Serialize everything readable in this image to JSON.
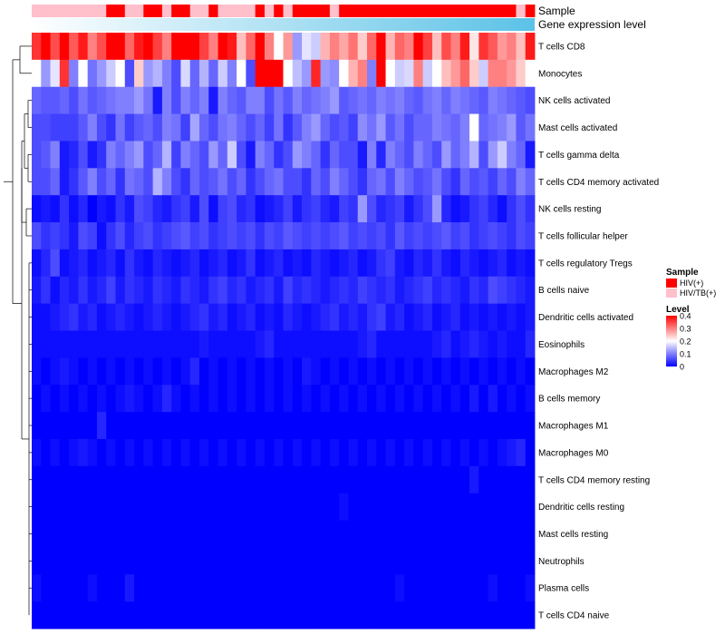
{
  "chart_data": {
    "type": "heatmap",
    "title": "",
    "annotation_titles": {
      "sample": "Sample",
      "gene_expression": "Gene expression level"
    },
    "rows": [
      "T cells CD8",
      "Monocytes",
      "NK cells activated",
      "Mast cells activated",
      "T cells gamma delta",
      "T cells CD4 memory activated",
      "NK cells resting",
      "T cells follicular helper",
      "T cells regulatory  Tregs",
      "B cells naive",
      "Dendritic cells activated",
      "Eosinophils",
      "Macrophages M2",
      "B cells memory",
      "Macrophages M1",
      "Macrophages M0",
      "T cells CD4 memory resting",
      "Dendritic cells resting",
      "Mast cells resting",
      "Neutrophils",
      "Plasma cells",
      "T cells CD4 naive"
    ],
    "sample_groups": [
      "HIV/TB(+)",
      "HIV/TB(+)",
      "HIV/TB(+)",
      "HIV/TB(+)",
      "HIV/TB(+)",
      "HIV/TB(+)",
      "HIV/TB(+)",
      "HIV/TB(+)",
      "HIV(+)",
      "HIV(+)",
      "HIV/TB(+)",
      "HIV/TB(+)",
      "HIV(+)",
      "HIV(+)",
      "HIV/TB(+)",
      "HIV(+)",
      "HIV(+)",
      "HIV/TB(+)",
      "HIV/TB(+)",
      "HIV(+)",
      "HIV/TB(+)",
      "HIV/TB(+)",
      "HIV/TB(+)",
      "HIV/TB(+)",
      "HIV(+)",
      "HIV/TB(+)",
      "HIV(+)",
      "HIV/TB(+)",
      "HIV(+)",
      "HIV(+)",
      "HIV(+)",
      "HIV(+)",
      "HIV/TB(+)",
      "HIV(+)",
      "HIV(+)",
      "HIV(+)",
      "HIV(+)",
      "HIV(+)",
      "HIV(+)",
      "HIV(+)",
      "HIV(+)",
      "HIV(+)",
      "HIV(+)",
      "HIV(+)",
      "HIV(+)",
      "HIV(+)",
      "HIV(+)",
      "HIV(+)",
      "HIV(+)",
      "HIV(+)",
      "HIV(+)",
      "HIV(+)",
      "HIV/TB(+)",
      "HIV(+)"
    ],
    "gene_expression_gradient": {
      "from": "#ffffff",
      "to": "#5bc2e7"
    },
    "values": [
      [
        0.36,
        0.4,
        0.34,
        0.46,
        0.33,
        0.38,
        0.3,
        0.34,
        0.4,
        0.46,
        0.32,
        0.38,
        0.46,
        0.35,
        0.3,
        0.45,
        0.41,
        0.4,
        0.35,
        0.3,
        0.43,
        0.38,
        0.25,
        0.32,
        0.46,
        0.3,
        0.2,
        0.28,
        0.12,
        0.18,
        0.16,
        0.26,
        0.3,
        0.27,
        0.31,
        0.24,
        0.32,
        0.41,
        0.26,
        0.32,
        0.3,
        0.44,
        0.35,
        0.25,
        0.34,
        0.3,
        0.38,
        0.22,
        0.36,
        0.33,
        0.28,
        0.3,
        0.25,
        0.38
      ],
      [
        0.2,
        0.12,
        0.18,
        0.36,
        0.1,
        0.2,
        0.09,
        0.12,
        0.16,
        0.2,
        0.06,
        0.24,
        0.12,
        0.14,
        0.1,
        0.06,
        0.17,
        0.08,
        0.14,
        0.08,
        0.16,
        0.1,
        0.2,
        0.06,
        0.46,
        0.46,
        0.46,
        0.2,
        0.15,
        0.12,
        0.37,
        0.12,
        0.11,
        0.2,
        0.26,
        0.3,
        0.1,
        0.46,
        0.2,
        0.16,
        0.17,
        0.3,
        0.16,
        0.2,
        0.25,
        0.28,
        0.32,
        0.24,
        0.16,
        0.3,
        0.3,
        0.28,
        0.24,
        0.2
      ],
      [
        0.08,
        0.07,
        0.07,
        0.08,
        0.06,
        0.09,
        0.07,
        0.08,
        0.09,
        0.1,
        0.1,
        0.12,
        0.09,
        0.02,
        0.1,
        0.06,
        0.1,
        0.08,
        0.1,
        0.02,
        0.1,
        0.08,
        0.07,
        0.1,
        0.1,
        0.06,
        0.09,
        0.07,
        0.1,
        0.08,
        0.09,
        0.1,
        0.12,
        0.07,
        0.08,
        0.09,
        0.08,
        0.1,
        0.09,
        0.1,
        0.08,
        0.07,
        0.09,
        0.1,
        0.08,
        0.1,
        0.09,
        0.08,
        0.07,
        0.1,
        0.09,
        0.08,
        0.07,
        0.06
      ],
      [
        0.06,
        0.06,
        0.05,
        0.05,
        0.05,
        0.07,
        0.1,
        0.06,
        0.04,
        0.09,
        0.05,
        0.07,
        0.08,
        0.06,
        0.1,
        0.09,
        0.05,
        0.13,
        0.08,
        0.06,
        0.09,
        0.1,
        0.08,
        0.06,
        0.08,
        0.05,
        0.09,
        0.04,
        0.07,
        0.1,
        0.12,
        0.08,
        0.06,
        0.07,
        0.05,
        0.11,
        0.09,
        0.12,
        0.07,
        0.09,
        0.06,
        0.08,
        0.08,
        0.1,
        0.09,
        0.08,
        0.1,
        0.2,
        0.08,
        0.09,
        0.1,
        0.12,
        0.07,
        0.09
      ],
      [
        0.06,
        0.07,
        0.1,
        0.02,
        0.03,
        0.06,
        0.02,
        0.04,
        0.1,
        0.08,
        0.1,
        0.12,
        0.06,
        0.08,
        0.14,
        0.05,
        0.1,
        0.08,
        0.06,
        0.12,
        0.08,
        0.16,
        0.06,
        0.02,
        0.1,
        0.08,
        0.04,
        0.06,
        0.12,
        0.1,
        0.08,
        0.04,
        0.08,
        0.06,
        0.06,
        0.02,
        0.1,
        0.03,
        0.1,
        0.08,
        0.06,
        0.1,
        0.08,
        0.06,
        0.12,
        0.08,
        0.1,
        0.14,
        0.06,
        0.12,
        0.16,
        0.1,
        0.08,
        0.02
      ],
      [
        0.06,
        0.06,
        0.08,
        0.02,
        0.04,
        0.07,
        0.1,
        0.06,
        0.08,
        0.04,
        0.09,
        0.08,
        0.06,
        0.14,
        0.1,
        0.06,
        0.04,
        0.08,
        0.06,
        0.07,
        0.09,
        0.06,
        0.08,
        0.04,
        0.06,
        0.08,
        0.09,
        0.06,
        0.06,
        0.04,
        0.08,
        0.06,
        0.1,
        0.08,
        0.06,
        0.04,
        0.08,
        0.09,
        0.06,
        0.1,
        0.08,
        0.06,
        0.07,
        0.09,
        0.06,
        0.04,
        0.08,
        0.06,
        0.07,
        0.05,
        0.08,
        0.06,
        0.1,
        0.08
      ],
      [
        0.01,
        0.02,
        0.01,
        0.04,
        0.01,
        0.03,
        0.0,
        0.02,
        0.01,
        0.04,
        0.02,
        0.06,
        0.05,
        0.03,
        0.02,
        0.04,
        0.05,
        0.02,
        0.06,
        0.01,
        0.05,
        0.06,
        0.03,
        0.04,
        0.01,
        0.02,
        0.03,
        0.05,
        0.02,
        0.04,
        0.05,
        0.03,
        0.02,
        0.05,
        0.04,
        0.12,
        0.06,
        0.03,
        0.04,
        0.05,
        0.02,
        0.04,
        0.06,
        0.12,
        0.03,
        0.01,
        0.02,
        0.04,
        0.05,
        0.03,
        0.01,
        0.04,
        0.06,
        0.04
      ],
      [
        0.06,
        0.04,
        0.05,
        0.04,
        0.02,
        0.06,
        0.05,
        0.01,
        0.04,
        0.06,
        0.03,
        0.05,
        0.06,
        0.04,
        0.05,
        0.06,
        0.07,
        0.05,
        0.06,
        0.04,
        0.05,
        0.06,
        0.05,
        0.06,
        0.04,
        0.06,
        0.05,
        0.07,
        0.06,
        0.05,
        0.06,
        0.05,
        0.06,
        0.07,
        0.05,
        0.06,
        0.05,
        0.06,
        0.04,
        0.07,
        0.05,
        0.06,
        0.05,
        0.06,
        0.07,
        0.05,
        0.06,
        0.04,
        0.05,
        0.06,
        0.05,
        0.04,
        0.06,
        0.05
      ],
      [
        0.01,
        0.03,
        0.06,
        0.01,
        0.02,
        0.03,
        0.01,
        0.02,
        0.03,
        0.01,
        0.04,
        0.02,
        0.01,
        0.03,
        0.02,
        0.01,
        0.02,
        0.03,
        0.01,
        0.02,
        0.03,
        0.01,
        0.02,
        0.04,
        0.01,
        0.02,
        0.03,
        0.01,
        0.02,
        0.01,
        0.03,
        0.02,
        0.01,
        0.02,
        0.03,
        0.01,
        0.02,
        0.04,
        0.05,
        0.02,
        0.01,
        0.03,
        0.02,
        0.04,
        0.02,
        0.01,
        0.03,
        0.02,
        0.01,
        0.02,
        0.03,
        0.01,
        0.02,
        0.01
      ],
      [
        0.02,
        0.04,
        0.01,
        0.03,
        0.02,
        0.04,
        0.02,
        0.03,
        0.05,
        0.02,
        0.04,
        0.03,
        0.02,
        0.04,
        0.03,
        0.02,
        0.04,
        0.03,
        0.02,
        0.04,
        0.05,
        0.03,
        0.04,
        0.02,
        0.03,
        0.04,
        0.02,
        0.05,
        0.03,
        0.04,
        0.03,
        0.02,
        0.03,
        0.04,
        0.03,
        0.05,
        0.04,
        0.03,
        0.04,
        0.02,
        0.03,
        0.04,
        0.05,
        0.03,
        0.04,
        0.03,
        0.02,
        0.04,
        0.03,
        0.06,
        0.05,
        0.04,
        0.03,
        0.02
      ],
      [
        0.01,
        0.01,
        0.02,
        0.03,
        0.04,
        0.02,
        0.03,
        0.01,
        0.02,
        0.03,
        0.02,
        0.01,
        0.02,
        0.03,
        0.02,
        0.01,
        0.02,
        0.03,
        0.04,
        0.02,
        0.03,
        0.01,
        0.02,
        0.03,
        0.01,
        0.02,
        0.01,
        0.03,
        0.02,
        0.01,
        0.02,
        0.03,
        0.04,
        0.02,
        0.03,
        0.02,
        0.04,
        0.05,
        0.02,
        0.03,
        0.01,
        0.02,
        0.03,
        0.01,
        0.02,
        0.03,
        0.01,
        0.02,
        0.01,
        0.02,
        0.01,
        0.02,
        0.01,
        0.02
      ],
      [
        0.01,
        0.01,
        0.01,
        0.01,
        0.01,
        0.01,
        0.01,
        0.01,
        0.01,
        0.01,
        0.01,
        0.01,
        0.01,
        0.01,
        0.01,
        0.01,
        0.01,
        0.01,
        0.02,
        0.01,
        0.01,
        0.01,
        0.01,
        0.01,
        0.02,
        0.03,
        0.01,
        0.01,
        0.01,
        0.01,
        0.01,
        0.01,
        0.01,
        0.01,
        0.01,
        0.02,
        0.03,
        0.01,
        0.01,
        0.01,
        0.01,
        0.01,
        0.01,
        0.02,
        0.03,
        0.01,
        0.02,
        0.03,
        0.02,
        0.01,
        0.02,
        0.01,
        0.01,
        0.03
      ],
      [
        0.01,
        0.0,
        0.01,
        0.02,
        0.01,
        0.0,
        0.01,
        0.0,
        0.01,
        0.0,
        0.01,
        0.0,
        0.01,
        0.0,
        0.01,
        0.0,
        0.01,
        0.03,
        0.0,
        0.01,
        0.0,
        0.01,
        0.0,
        0.01,
        0.0,
        0.01,
        0.0,
        0.01,
        0.0,
        0.02,
        0.01,
        0.0,
        0.01,
        0.0,
        0.01,
        0.0,
        0.01,
        0.0,
        0.01,
        0.0,
        0.01,
        0.0,
        0.01,
        0.0,
        0.01,
        0.0,
        0.01,
        0.0,
        0.01,
        0.0,
        0.01,
        0.0,
        0.01,
        0.0
      ],
      [
        0.0,
        0.01,
        0.0,
        0.01,
        0.0,
        0.01,
        0.0,
        0.01,
        0.0,
        0.01,
        0.02,
        0.01,
        0.0,
        0.01,
        0.03,
        0.01,
        0.0,
        0.01,
        0.0,
        0.01,
        0.0,
        0.01,
        0.0,
        0.01,
        0.0,
        0.01,
        0.0,
        0.01,
        0.0,
        0.01,
        0.0,
        0.01,
        0.0,
        0.01,
        0.0,
        0.01,
        0.0,
        0.01,
        0.0,
        0.01,
        0.0,
        0.01,
        0.0,
        0.01,
        0.0,
        0.01,
        0.0,
        0.02,
        0.0,
        0.02,
        0.0,
        0.01,
        0.0,
        0.01
      ],
      [
        0.0,
        0.0,
        0.0,
        0.0,
        0.0,
        0.0,
        0.0,
        0.03,
        0.0,
        0.0,
        0.0,
        0.0,
        0.0,
        0.0,
        0.0,
        0.0,
        0.0,
        0.0,
        0.0,
        0.0,
        0.0,
        0.0,
        0.0,
        0.0,
        0.0,
        0.0,
        0.0,
        0.0,
        0.0,
        0.0,
        0.0,
        0.0,
        0.0,
        0.0,
        0.0,
        0.0,
        0.0,
        0.0,
        0.0,
        0.0,
        0.0,
        0.0,
        0.0,
        0.0,
        0.0,
        0.0,
        0.0,
        0.0,
        0.0,
        0.0,
        0.0,
        0.0,
        0.0,
        0.0
      ],
      [
        0.01,
        0.0,
        0.01,
        0.0,
        0.01,
        0.02,
        0.01,
        0.0,
        0.01,
        0.0,
        0.01,
        0.0,
        0.01,
        0.0,
        0.01,
        0.0,
        0.01,
        0.0,
        0.01,
        0.0,
        0.01,
        0.0,
        0.01,
        0.0,
        0.01,
        0.0,
        0.01,
        0.0,
        0.01,
        0.0,
        0.01,
        0.0,
        0.01,
        0.0,
        0.01,
        0.0,
        0.01,
        0.0,
        0.01,
        0.0,
        0.01,
        0.0,
        0.01,
        0.0,
        0.01,
        0.0,
        0.01,
        0.0,
        0.01,
        0.0,
        0.01,
        0.02,
        0.03,
        0.0
      ],
      [
        0.0,
        0.0,
        0.0,
        0.0,
        0.0,
        0.0,
        0.0,
        0.0,
        0.0,
        0.0,
        0.0,
        0.0,
        0.0,
        0.0,
        0.0,
        0.0,
        0.0,
        0.0,
        0.0,
        0.0,
        0.0,
        0.0,
        0.0,
        0.0,
        0.0,
        0.0,
        0.0,
        0.0,
        0.0,
        0.0,
        0.0,
        0.0,
        0.0,
        0.0,
        0.0,
        0.0,
        0.0,
        0.0,
        0.0,
        0.0,
        0.0,
        0.0,
        0.0,
        0.0,
        0.0,
        0.0,
        0.0,
        0.02,
        0.0,
        0.0,
        0.0,
        0.0,
        0.0,
        0.0
      ],
      [
        0.0,
        0.0,
        0.0,
        0.0,
        0.0,
        0.0,
        0.0,
        0.0,
        0.0,
        0.0,
        0.0,
        0.0,
        0.0,
        0.0,
        0.0,
        0.0,
        0.0,
        0.0,
        0.0,
        0.0,
        0.0,
        0.0,
        0.0,
        0.0,
        0.0,
        0.0,
        0.0,
        0.0,
        0.0,
        0.0,
        0.0,
        0.0,
        0.0,
        0.01,
        0.0,
        0.0,
        0.0,
        0.0,
        0.0,
        0.0,
        0.0,
        0.0,
        0.0,
        0.0,
        0.0,
        0.0,
        0.0,
        0.0,
        0.0,
        0.0,
        0.0,
        0.0,
        0.0,
        0.0
      ],
      [
        0.0,
        0.0,
        0.0,
        0.0,
        0.0,
        0.0,
        0.0,
        0.0,
        0.0,
        0.0,
        0.0,
        0.0,
        0.0,
        0.0,
        0.0,
        0.0,
        0.0,
        0.0,
        0.0,
        0.0,
        0.0,
        0.0,
        0.0,
        0.0,
        0.0,
        0.0,
        0.0,
        0.0,
        0.0,
        0.0,
        0.0,
        0.0,
        0.0,
        0.0,
        0.0,
        0.0,
        0.0,
        0.0,
        0.0,
        0.0,
        0.0,
        0.0,
        0.0,
        0.0,
        0.0,
        0.0,
        0.0,
        0.0,
        0.0,
        0.0,
        0.0,
        0.0,
        0.0,
        0.0
      ],
      [
        0.0,
        0.0,
        0.0,
        0.0,
        0.0,
        0.0,
        0.0,
        0.0,
        0.0,
        0.0,
        0.0,
        0.0,
        0.0,
        0.0,
        0.0,
        0.0,
        0.0,
        0.0,
        0.0,
        0.0,
        0.0,
        0.0,
        0.0,
        0.0,
        0.0,
        0.0,
        0.0,
        0.0,
        0.0,
        0.0,
        0.0,
        0.0,
        0.0,
        0.0,
        0.0,
        0.0,
        0.0,
        0.0,
        0.0,
        0.0,
        0.0,
        0.0,
        0.0,
        0.0,
        0.0,
        0.0,
        0.0,
        0.0,
        0.0,
        0.0,
        0.0,
        0.0,
        0.0,
        0.0
      ],
      [
        0.01,
        0.0,
        0.0,
        0.0,
        0.0,
        0.0,
        0.01,
        0.0,
        0.0,
        0.0,
        0.02,
        0.0,
        0.0,
        0.0,
        0.0,
        0.0,
        0.0,
        0.0,
        0.0,
        0.0,
        0.0,
        0.0,
        0.0,
        0.0,
        0.0,
        0.0,
        0.0,
        0.0,
        0.0,
        0.0,
        0.0,
        0.0,
        0.0,
        0.0,
        0.0,
        0.0,
        0.0,
        0.0,
        0.0,
        0.01,
        0.0,
        0.0,
        0.0,
        0.0,
        0.0,
        0.0,
        0.0,
        0.0,
        0.0,
        0.01,
        0.0,
        0.0,
        0.0,
        0.01
      ],
      [
        0.0,
        0.0,
        0.0,
        0.0,
        0.0,
        0.0,
        0.0,
        0.0,
        0.0,
        0.0,
        0.0,
        0.0,
        0.0,
        0.0,
        0.0,
        0.0,
        0.0,
        0.0,
        0.0,
        0.0,
        0.0,
        0.0,
        0.0,
        0.0,
        0.0,
        0.0,
        0.0,
        0.0,
        0.0,
        0.0,
        0.0,
        0.0,
        0.0,
        0.0,
        0.0,
        0.0,
        0.0,
        0.0,
        0.0,
        0.0,
        0.0,
        0.0,
        0.0,
        0.0,
        0.0,
        0.0,
        0.0,
        0.0,
        0.0,
        0.0,
        0.0,
        0.0,
        0.0,
        0.0
      ]
    ],
    "legend": {
      "sample_title": "Sample",
      "sample_items": [
        {
          "label": "HIV(+)",
          "color": "#ff0000"
        },
        {
          "label": "HIV/TB(+)",
          "color": "#ffc0cb"
        }
      ],
      "level_title": "Level",
      "level_ticks": [
        {
          "value": 0.4,
          "label": "0.4"
        },
        {
          "value": 0.3,
          "label": "0.3"
        },
        {
          "value": 0.2,
          "label": "0.2"
        },
        {
          "value": 0.1,
          "label": "0.1"
        },
        {
          "value": 0.0,
          "label": "0"
        }
      ]
    },
    "color_scale": {
      "min": 0,
      "mid": 0.2,
      "max": 0.4,
      "low_color": "#0000ff",
      "mid_color": "#ffffff",
      "high_color": "#ff0000"
    }
  }
}
